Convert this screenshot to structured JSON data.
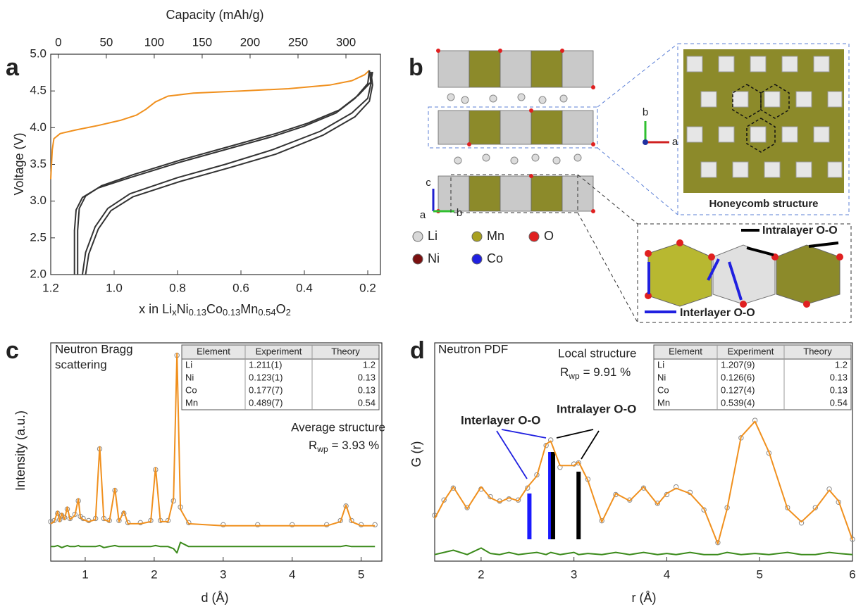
{
  "chart_data": [
    {
      "type": "line",
      "panel_label": "a",
      "x2_label": "Capacity (mAh/g)",
      "y_label": "Voltage (V)",
      "x_label_parts": [
        "x in Li",
        "x",
        "Ni",
        "0.13",
        "Co",
        "0.13",
        "Mn",
        "0.54",
        "O",
        "2"
      ],
      "xlim": [
        1.2,
        0.16
      ],
      "xticks": [
        {
          "value": 1.2,
          "label": "1.2"
        },
        {
          "value": 1.0,
          "label": "1.0"
        },
        {
          "value": 0.8,
          "label": "0.8"
        },
        {
          "value": 0.6,
          "label": "0.6"
        },
        {
          "value": 0.4,
          "label": "0.4"
        },
        {
          "value": 0.2,
          "label": "0.2"
        }
      ],
      "x2lim": [
        -8,
        336
      ],
      "x2ticks": [
        0,
        50,
        100,
        150,
        200,
        250,
        300
      ],
      "ylim": [
        2.0,
        5.0
      ],
      "yticks": [
        {
          "value": 2.0,
          "label": "2.0"
        },
        {
          "value": 2.5,
          "label": "2.5"
        },
        {
          "value": 3.0,
          "label": "3.0"
        },
        {
          "value": 3.5,
          "label": "3.5"
        },
        {
          "value": 4.0,
          "label": "4.0"
        },
        {
          "value": 4.5,
          "label": "4.5"
        },
        {
          "value": 5.0,
          "label": "5.0"
        }
      ],
      "series": [
        {
          "color": "#f0901e",
          "x": [
            1.2,
            1.195,
            1.19,
            1.17,
            1.12,
            1.05,
            0.98,
            0.93,
            0.9,
            0.87,
            0.83,
            0.75,
            0.6,
            0.45,
            0.32,
            0.25,
            0.21,
            0.195
          ],
          "values": [
            3.3,
            3.7,
            3.85,
            3.92,
            3.97,
            4.03,
            4.1,
            4.17,
            4.25,
            4.35,
            4.43,
            4.47,
            4.5,
            4.53,
            4.58,
            4.64,
            4.72,
            4.78
          ]
        },
        {
          "color": "#333333",
          "x": [
            1.125,
            1.125,
            1.12,
            1.1,
            1.05,
            0.95,
            0.8,
            0.65,
            0.5,
            0.4,
            0.3,
            0.24,
            0.2,
            0.195
          ],
          "values": [
            2.0,
            2.6,
            2.88,
            3.05,
            3.18,
            3.32,
            3.52,
            3.7,
            3.88,
            4.02,
            4.2,
            4.4,
            4.6,
            4.78
          ]
        },
        {
          "color": "#333333",
          "x": [
            1.115,
            1.115,
            1.11,
            1.09,
            1.04,
            0.94,
            0.79,
            0.64,
            0.49,
            0.39,
            0.29,
            0.23,
            0.19,
            0.185
          ],
          "values": [
            2.0,
            2.6,
            2.9,
            3.07,
            3.21,
            3.36,
            3.56,
            3.74,
            3.92,
            4.06,
            4.24,
            4.44,
            4.62,
            4.76
          ]
        },
        {
          "color": "#333333",
          "x": [
            0.195,
            0.19,
            0.2,
            0.25,
            0.35,
            0.5,
            0.65,
            0.8,
            0.95,
            1.02,
            1.06,
            1.09,
            1.1
          ],
          "values": [
            4.78,
            4.6,
            4.4,
            4.2,
            3.95,
            3.7,
            3.5,
            3.32,
            3.1,
            2.9,
            2.65,
            2.3,
            2.0
          ]
        },
        {
          "color": "#333333",
          "x": [
            0.19,
            0.185,
            0.195,
            0.24,
            0.34,
            0.49,
            0.64,
            0.79,
            0.94,
            1.01,
            1.05,
            1.08,
            1.09
          ],
          "values": [
            4.76,
            4.58,
            4.36,
            4.15,
            3.9,
            3.64,
            3.45,
            3.27,
            3.06,
            2.87,
            2.62,
            2.28,
            2.0
          ]
        }
      ]
    },
    {
      "type": "line",
      "panel_label": "c",
      "title_lines": [
        "Neutron Bragg",
        "scattering"
      ],
      "annotations": [
        {
          "text": "Average structure",
          "color": "#222222"
        }
      ],
      "rwp_parts": [
        "R",
        "wp",
        "= 3.93 %"
      ],
      "x_label": "d (Å)",
      "y_label": "Intensity (a.u.)",
      "xlim": [
        0.5,
        5.3
      ],
      "xticks": [
        1,
        2,
        3,
        4,
        5
      ],
      "ylim": [
        0,
        105
      ],
      "x": [
        0.5,
        0.55,
        0.6,
        0.63,
        0.66,
        0.7,
        0.74,
        0.78,
        0.85,
        0.9,
        0.93,
        0.97,
        1.05,
        1.15,
        1.21,
        1.27,
        1.35,
        1.43,
        1.49,
        1.56,
        1.62,
        1.8,
        1.95,
        2.02,
        2.09,
        2.2,
        2.28,
        2.33,
        2.38,
        2.5,
        3.0,
        3.5,
        4.0,
        4.5,
        4.7,
        4.78,
        4.86,
        5.0,
        5.2
      ],
      "series": [
        {
          "marker": "circle",
          "color": "#8a8a8a",
          "values": [
            19,
            19.5,
            23,
            20,
            22,
            21,
            25,
            20.5,
            22.5,
            29,
            21.5,
            20.5,
            19.5,
            20.5,
            54,
            20.5,
            19.5,
            34,
            19.5,
            23,
            18.5,
            18.5,
            19.5,
            44,
            19.5,
            19.5,
            29,
            99,
            26,
            18.5,
            17.5,
            17.5,
            17.5,
            17.5,
            19.5,
            26.5,
            19.5,
            17.5,
            17.5
          ]
        },
        {
          "color": "#f0901e",
          "values": [
            18,
            19,
            24,
            19,
            23,
            20,
            26,
            20,
            22,
            30,
            21,
            20,
            19,
            20,
            55,
            20,
            19,
            35,
            19,
            24,
            18,
            18,
            19,
            45,
            19,
            19,
            30,
            100,
            25,
            18,
            17,
            17,
            17,
            17,
            19,
            27,
            19,
            17,
            17
          ]
        },
        {
          "color": "#3a8a1a",
          "values": [
            7,
            7,
            7.5,
            7,
            6.5,
            7,
            7.5,
            7,
            7,
            7.5,
            7,
            7,
            7,
            7,
            7.5,
            6.5,
            7,
            7.5,
            7,
            7,
            7,
            7,
            7,
            7.5,
            7,
            7,
            6,
            4,
            9,
            7,
            7,
            7,
            7,
            7,
            7,
            7.5,
            7,
            7,
            7
          ]
        }
      ],
      "table": {
        "columns": [
          "Element",
          "Experiment",
          "Theory"
        ],
        "rows": [
          [
            "Li",
            "1.211(1)",
            1.2
          ],
          [
            "Ni",
            "0.123(1)",
            0.13
          ],
          [
            "Co",
            "0.177(7)",
            0.13
          ],
          [
            "Mn",
            "0.489(7)",
            0.54
          ]
        ]
      }
    },
    {
      "type": "line",
      "panel_label": "d",
      "title_lines": [
        "Neutron PDF"
      ],
      "annotations": [
        {
          "text": "Local structure",
          "color": "#222222"
        },
        {
          "text": "Interlayer O-O",
          "color": "#2020e0"
        },
        {
          "text": "Intralayer O-O",
          "color": "#000000"
        }
      ],
      "rwp_parts": [
        "R",
        "wp",
        "= 9.91 %"
      ],
      "x_label": "r (Å)",
      "y_label": "G (r)",
      "xlim": [
        1.5,
        6.0
      ],
      "xticks": [
        2,
        3,
        4,
        5,
        6
      ],
      "ylim": [
        0,
        100
      ],
      "x": [
        1.5,
        1.6,
        1.7,
        1.85,
        2.0,
        2.1,
        2.2,
        2.3,
        2.4,
        2.5,
        2.6,
        2.7,
        2.75,
        2.85,
        3.0,
        3.05,
        3.15,
        3.3,
        3.45,
        3.6,
        3.75,
        3.9,
        4.0,
        4.1,
        4.25,
        4.4,
        4.55,
        4.65,
        4.8,
        4.95,
        5.1,
        5.3,
        5.45,
        5.6,
        5.75,
        5.85,
        6.0
      ],
      "series": [
        {
          "marker": "circle",
          "color": "#8a8a8a",
          "values": [
            21,
            28,
            33.5,
            24.5,
            33,
            29.5,
            27.5,
            28.5,
            28,
            33.5,
            39.5,
            53,
            55.5,
            43,
            44.5,
            45,
            37.5,
            18.5,
            30.5,
            28,
            33.5,
            26.5,
            30.5,
            34,
            31.5,
            23.5,
            8.5,
            24.5,
            56.5,
            64.5,
            49.5,
            24.5,
            17.5,
            24.5,
            33,
            27,
            10
          ]
        },
        {
          "color": "#f0901e",
          "values": [
            19.5,
            27.6,
            34,
            24,
            34,
            29,
            27,
            29,
            27.6,
            34,
            39,
            53.6,
            55,
            43.8,
            43.8,
            45.5,
            37,
            18,
            31,
            27.6,
            34,
            26,
            31,
            33.4,
            31,
            24,
            8,
            24,
            57,
            64,
            50,
            24,
            18,
            24,
            32.5,
            27.6,
            9.7
          ]
        },
        {
          "color": "#3a8a1a",
          "values": [
            3,
            4,
            5,
            3,
            6,
            3.5,
            3,
            4,
            3,
            3.5,
            4,
            3,
            4,
            3,
            4,
            3,
            3.5,
            3,
            4,
            3,
            4,
            3,
            3.5,
            3,
            4,
            3,
            3,
            4,
            3,
            3.5,
            3,
            4,
            3,
            3,
            4,
            3.5,
            3
          ]
        }
      ],
      "sticks": [
        {
          "x": 2.52,
          "low": 10,
          "high": 31,
          "color": "#1a1aff"
        },
        {
          "x": 2.745,
          "low": 10,
          "high": 50,
          "color": "#1a1aff"
        },
        {
          "x": 2.775,
          "low": 10,
          "high": 50,
          "color": "#000000"
        },
        {
          "x": 3.05,
          "low": 10,
          "high": 41,
          "color": "#000000"
        }
      ],
      "table": {
        "columns": [
          "Element",
          "Experiment",
          "Theory"
        ],
        "rows": [
          [
            "Li",
            "1.207(9)",
            1.2
          ],
          [
            "Ni",
            "0.126(6)",
            0.13
          ],
          [
            "Co",
            "0.127(4)",
            0.13
          ],
          [
            "Mn",
            "0.539(4)",
            0.54
          ]
        ]
      }
    }
  ],
  "structure": {
    "panel_label": "b",
    "axes_main": [
      "c",
      "a",
      "b"
    ],
    "axes_inset": [
      "b",
      "a"
    ],
    "legend": [
      {
        "label": "Li",
        "color": "#d8d8d8"
      },
      {
        "label": "Mn",
        "color": "#a8a020"
      },
      {
        "label": "O",
        "color": "#e02020"
      },
      {
        "label": "Ni",
        "color": "#7a1010"
      },
      {
        "label": "Co",
        "color": "#2020e0"
      }
    ],
    "honeycomb_caption": "Honeycomb structure",
    "intralayer": "Intralayer O-O",
    "interlayer": "Interlayer O-O"
  }
}
